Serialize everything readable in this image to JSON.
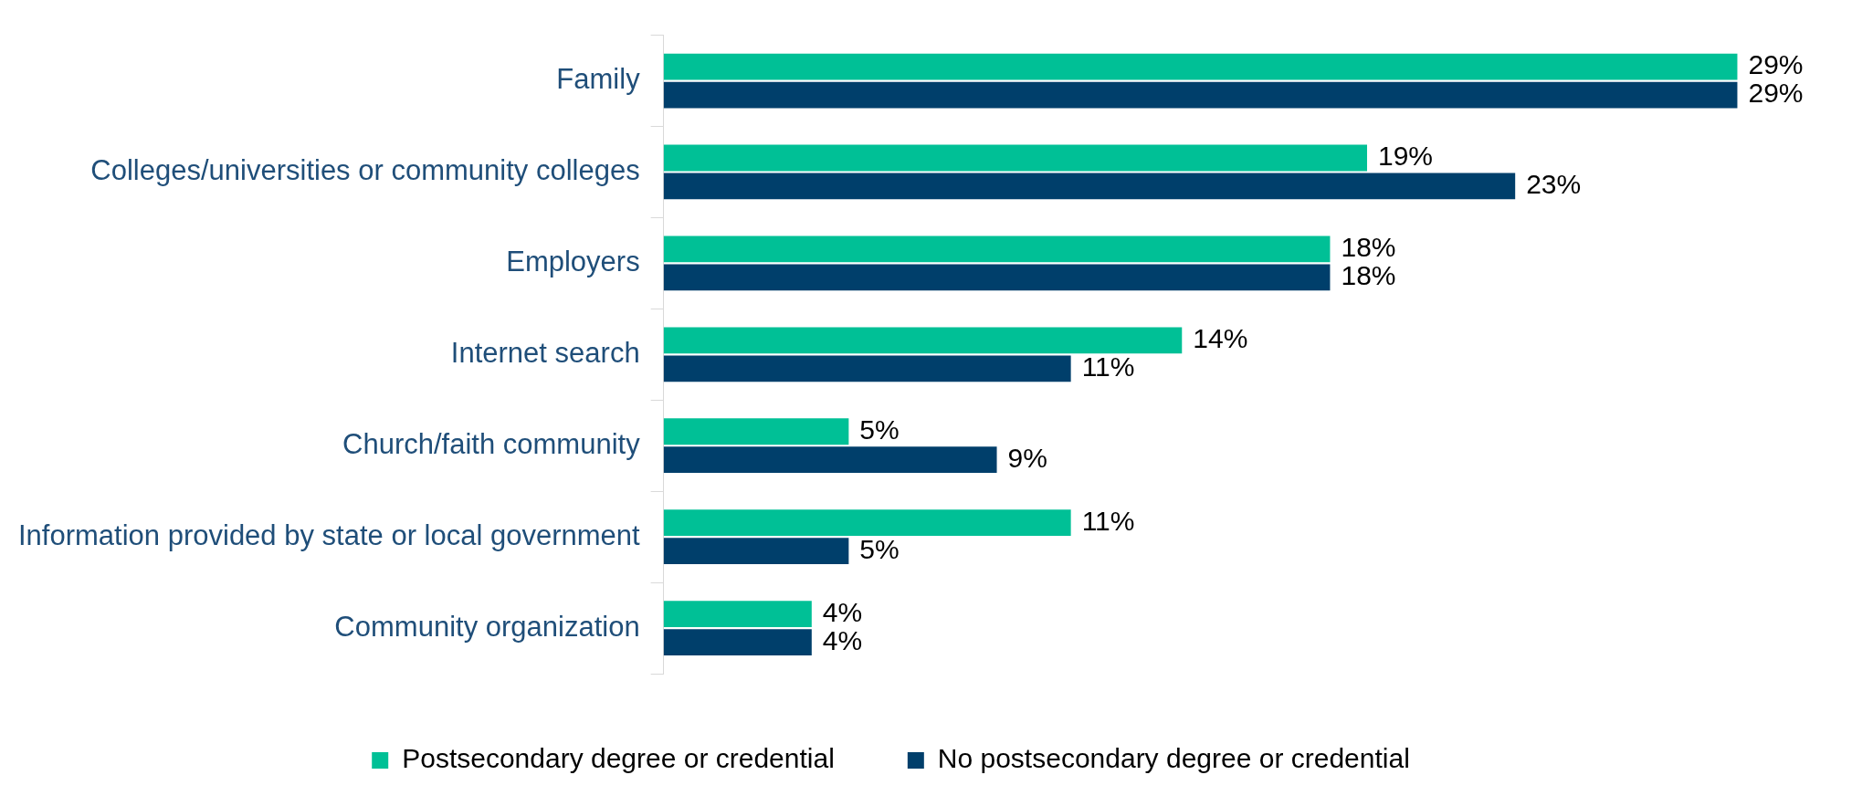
{
  "chart_data": {
    "type": "bar",
    "orientation": "horizontal",
    "categories": [
      "Family",
      "Colleges/universities or community colleges",
      "Employers",
      "Internet search",
      "Church/faith community",
      "Information provided by state or local government",
      "Community organization"
    ],
    "series": [
      {
        "name": "Postsecondary degree or credential",
        "color": "#00c096",
        "values": [
          29,
          19,
          18,
          14,
          5,
          11,
          4
        ],
        "value_labels": [
          "29%",
          "19%",
          "18%",
          "14%",
          "5%",
          "11%",
          "4%"
        ]
      },
      {
        "name": "No postsecondary degree or credential",
        "color": "#003f6b",
        "values": [
          29,
          23,
          18,
          11,
          9,
          5,
          4
        ],
        "value_labels": [
          "29%",
          "23%",
          "18%",
          "11%",
          "9%",
          "5%",
          "4%"
        ]
      }
    ],
    "legend": "bottom"
  }
}
